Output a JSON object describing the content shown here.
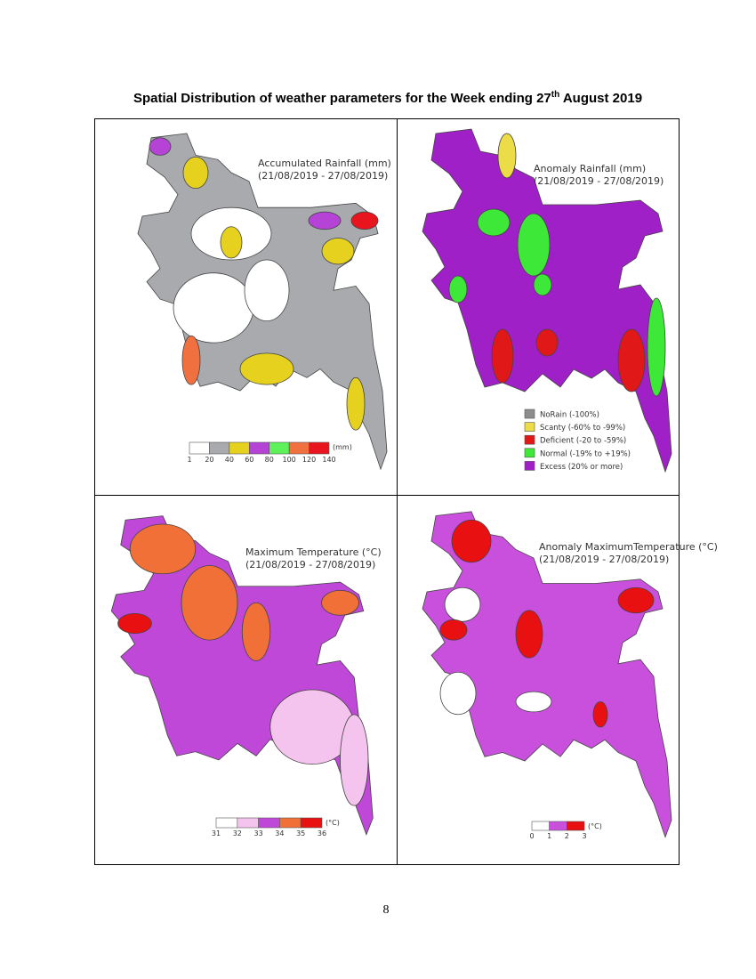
{
  "header": {
    "title": {
      "text_before": "Spatial Distribution of weather parameters for the Week ending 27",
      "superscript": "th",
      "text_after": "August 2019"
    }
  },
  "panels": [
    {
      "title": "Accumulated Rainfall (mm)",
      "period": "(21/08/2019 - 27/08/2019)",
      "scale": {
        "colors": [
          "#ffffff",
          "#a8aaad",
          "#e6d21e",
          "#b544d6",
          "#5ef25a",
          "#f07040",
          "#e8141e"
        ],
        "labels": [
          "1",
          "20",
          "40",
          "60",
          "80",
          "100",
          "120",
          "140"
        ],
        "unit": "(mm)"
      }
    },
    {
      "title": "Anomaly Rainfall (mm)",
      "period": "(21/08/2019 - 27/08/2019)",
      "legend": [
        {
          "label": "NoRain (-100%)",
          "color": "#8c8c8c"
        },
        {
          "label": "Scanty (-60% to -99%)",
          "color": "#ecdc48"
        },
        {
          "label": "Deficient (-20 to -59%)",
          "color": "#e01818"
        },
        {
          "label": "Normal (-19% to +19%)",
          "color": "#3ee838"
        },
        {
          "label": "Excess (20% or more)",
          "color": "#a020c8"
        }
      ]
    },
    {
      "title": "Maximum Temperature (°C)",
      "period": "(21/08/2019 - 27/08/2019)",
      "scale": {
        "colors": [
          "#ffffff",
          "#f5c4ee",
          "#c048d8",
          "#f07038",
          "#e81010"
        ],
        "labels": [
          "31",
          "32",
          "33",
          "34",
          "35",
          "36"
        ],
        "unit": "(°C)"
      }
    },
    {
      "title": "Anomaly MaximumTemperature (°C)",
      "period": "(21/08/2019 - 27/08/2019)",
      "scale": {
        "colors": [
          "#ffffff",
          "#c850dc",
          "#e81010"
        ],
        "labels": [
          "0",
          "1",
          "2",
          "3"
        ],
        "unit": "(°C)"
      }
    }
  ],
  "page_number": "8"
}
